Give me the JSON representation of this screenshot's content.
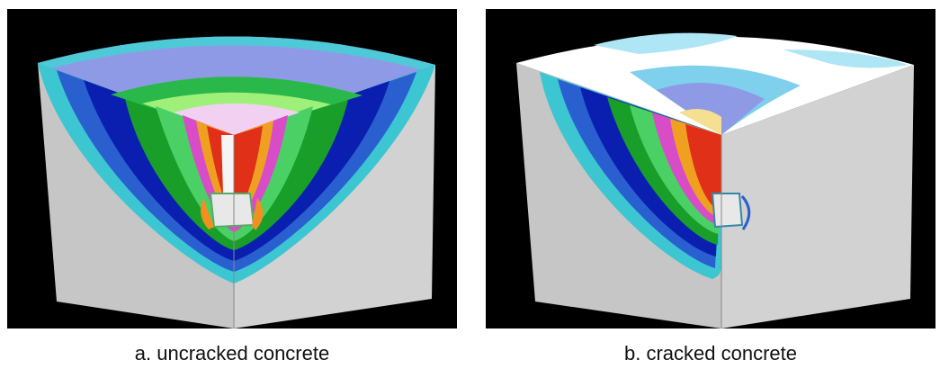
{
  "figure": {
    "panels": [
      {
        "caption": "a. uncracked concrete"
      },
      {
        "caption": "b. cracked concrete"
      }
    ]
  }
}
